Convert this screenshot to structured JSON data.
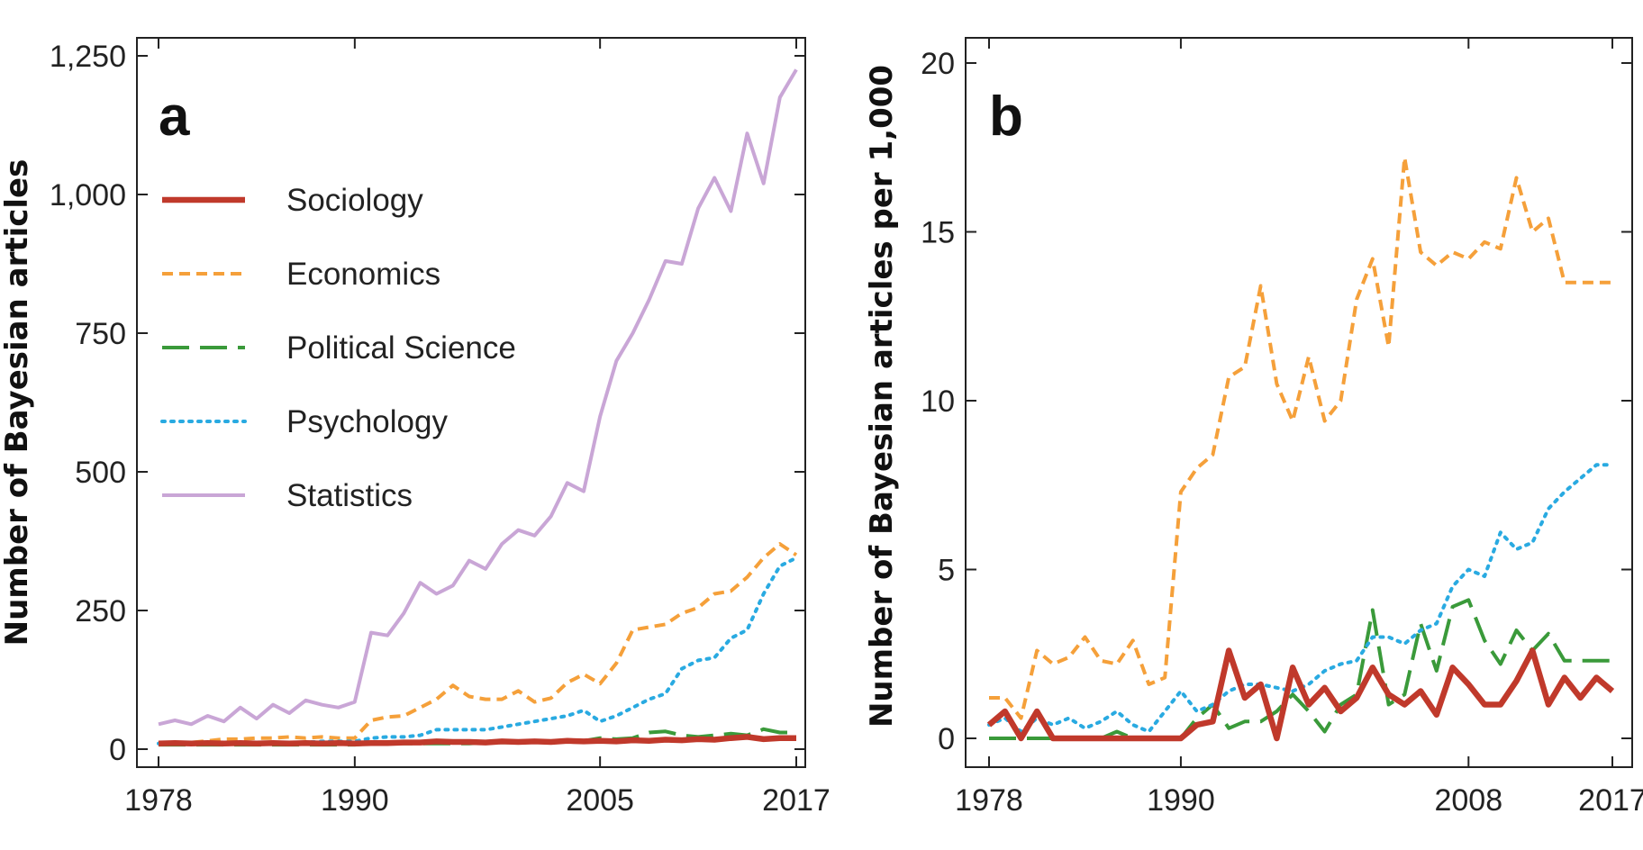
{
  "chart_data": [
    {
      "panel": "a",
      "type": "line",
      "ylabel": "Number of Bayesian articles",
      "xlabel": "",
      "xlim": [
        1978,
        2017
      ],
      "ylim": [
        0,
        1250
      ],
      "xticks": [
        1978,
        1990,
        2005,
        2017
      ],
      "yticks": [
        0,
        250,
        500,
        750,
        1000,
        1250
      ],
      "ytick_labels": [
        "0",
        "250",
        "500",
        "750",
        "1,000",
        "1,250"
      ],
      "legend": "upper-left",
      "x": [
        1978,
        1979,
        1980,
        1981,
        1982,
        1983,
        1984,
        1985,
        1986,
        1987,
        1988,
        1989,
        1990,
        1991,
        1992,
        1993,
        1994,
        1995,
        1996,
        1997,
        1998,
        1999,
        2000,
        2001,
        2002,
        2003,
        2004,
        2005,
        2006,
        2007,
        2008,
        2009,
        2010,
        2011,
        2012,
        2013,
        2014,
        2015,
        2016,
        2017
      ],
      "series": [
        {
          "name": "Sociology",
          "color": "#c0392b",
          "style": "solid-thick",
          "values": [
            10,
            11,
            10,
            11,
            10,
            11,
            10,
            11,
            10,
            11,
            10,
            11,
            10,
            11,
            11,
            12,
            12,
            14,
            13,
            13,
            12,
            14,
            13,
            14,
            13,
            15,
            14,
            15,
            14,
            16,
            15,
            17,
            16,
            18,
            17,
            20,
            22,
            18,
            20,
            20
          ]
        },
        {
          "name": "Economics",
          "color": "#f5a03a",
          "style": "short-dash",
          "values": [
            10,
            12,
            12,
            15,
            18,
            18,
            20,
            20,
            22,
            20,
            22,
            20,
            20,
            52,
            58,
            60,
            75,
            90,
            115,
            95,
            90,
            90,
            105,
            85,
            92,
            120,
            135,
            118,
            155,
            215,
            220,
            225,
            245,
            255,
            280,
            285,
            310,
            345,
            370,
            350
          ]
        },
        {
          "name": "Political Science",
          "color": "#3a9a3a",
          "style": "long-dash",
          "values": [
            8,
            8,
            8,
            8,
            8,
            8,
            8,
            8,
            8,
            8,
            8,
            8,
            8,
            10,
            10,
            10,
            10,
            10,
            10,
            10,
            12,
            12,
            12,
            12,
            14,
            14,
            15,
            20,
            18,
            20,
            30,
            32,
            25,
            22,
            25,
            28,
            25,
            36,
            30,
            30
          ]
        },
        {
          "name": "Psychology",
          "color": "#29aae1",
          "style": "dotted",
          "values": [
            10,
            10,
            10,
            10,
            10,
            10,
            10,
            12,
            12,
            12,
            14,
            14,
            14,
            20,
            22,
            22,
            25,
            35,
            35,
            35,
            35,
            40,
            45,
            50,
            55,
            60,
            70,
            50,
            60,
            75,
            90,
            100,
            145,
            160,
            165,
            200,
            215,
            280,
            330,
            345
          ]
        },
        {
          "name": "Statistics",
          "color": "#c9a6d6",
          "style": "solid",
          "values": [
            45,
            52,
            45,
            60,
            50,
            75,
            55,
            80,
            65,
            88,
            80,
            75,
            85,
            210,
            205,
            245,
            300,
            280,
            295,
            340,
            325,
            370,
            395,
            385,
            420,
            480,
            465,
            600,
            700,
            750,
            810,
            880,
            875,
            975,
            1030,
            970,
            1110,
            1020,
            1175,
            1225
          ]
        }
      ]
    },
    {
      "panel": "b",
      "type": "line",
      "ylabel": "Number of Bayesian articles per 1,000",
      "xlabel": "",
      "xlim": [
        1978,
        2017
      ],
      "ylim": [
        0,
        20
      ],
      "xticks": [
        1978,
        1990,
        2008,
        2017
      ],
      "yticks": [
        0,
        5,
        10,
        15,
        20
      ],
      "ytick_labels": [
        "0",
        "5",
        "10",
        "15",
        "20"
      ],
      "x": [
        1978,
        1979,
        1980,
        1981,
        1982,
        1983,
        1984,
        1985,
        1986,
        1987,
        1988,
        1989,
        1990,
        1991,
        1992,
        1993,
        1994,
        1995,
        1996,
        1997,
        1998,
        1999,
        2000,
        2001,
        2002,
        2003,
        2004,
        2005,
        2006,
        2007,
        2008,
        2009,
        2010,
        2011,
        2012,
        2013,
        2014,
        2015,
        2016,
        2017
      ],
      "series": [
        {
          "name": "Sociology",
          "color": "#c0392b",
          "style": "solid-thick",
          "values": [
            0.4,
            0.8,
            0,
            0.8,
            0,
            0,
            0,
            0,
            0,
            0,
            0,
            0,
            0,
            0.4,
            0.5,
            2.6,
            1.2,
            1.6,
            0,
            2.1,
            1.0,
            1.5,
            0.8,
            1.2,
            2.1,
            1.3,
            1.0,
            1.4,
            0.7,
            2.1,
            1.6,
            1.0,
            1.0,
            1.7,
            2.6,
            1.0,
            1.8,
            1.2,
            1.8,
            1.4
          ]
        },
        {
          "name": "Economics",
          "color": "#f5a03a",
          "style": "short-dash",
          "values": [
            1.2,
            1.2,
            0.6,
            2.6,
            2.2,
            2.4,
            3.0,
            2.3,
            2.2,
            2.9,
            1.6,
            1.8,
            7.3,
            8.0,
            8.4,
            10.7,
            11.0,
            13.4,
            10.5,
            9.4,
            11.3,
            9.4,
            10.0,
            13.0,
            14.2,
            11.6,
            17.2,
            14.4,
            14.0,
            14.4,
            14.2,
            14.7,
            14.5,
            16.6,
            15.0,
            15.4,
            13.5,
            13.5,
            13.5,
            13.5
          ]
        },
        {
          "name": "Political Science",
          "color": "#3a9a3a",
          "style": "long-dash",
          "values": [
            0,
            0,
            0,
            0,
            0,
            0,
            0,
            0,
            0.2,
            0,
            0,
            0,
            0,
            0.6,
            1.0,
            0.3,
            0.5,
            0.5,
            0.8,
            1.3,
            0.8,
            0.2,
            1.0,
            1.3,
            3.8,
            1.0,
            1.3,
            3.4,
            2.0,
            3.9,
            4.1,
            2.9,
            2.2,
            3.2,
            2.6,
            3.1,
            2.3,
            2.3,
            2.3,
            2.3
          ]
        },
        {
          "name": "Psychology",
          "color": "#29aae1",
          "style": "dotted",
          "values": [
            0.4,
            0.6,
            0.2,
            0.6,
            0.4,
            0.6,
            0.3,
            0.5,
            0.8,
            0.4,
            0.2,
            0.8,
            1.4,
            0.8,
            1.0,
            1.4,
            1.6,
            1.6,
            1.5,
            1.4,
            1.6,
            2.0,
            2.2,
            2.3,
            3.0,
            3.0,
            2.8,
            3.2,
            3.4,
            4.5,
            5.0,
            4.8,
            6.1,
            5.6,
            5.8,
            6.8,
            7.3,
            7.7,
            8.1,
            8.1
          ]
        }
      ]
    }
  ]
}
